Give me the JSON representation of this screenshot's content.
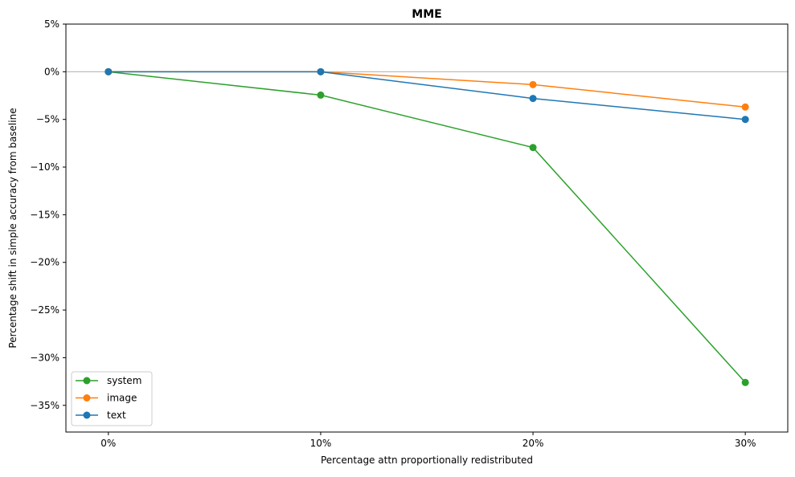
{
  "chart_data": {
    "type": "line",
    "title": "MME",
    "xlabel": "Percentage attn proportionally redistributed",
    "ylabel": "Percentage shift in simple accuracy from baseline",
    "x": [
      0,
      10,
      20,
      30
    ],
    "xtick_labels": [
      "0%",
      "10%",
      "20%",
      "30%"
    ],
    "yticks": [
      5,
      0,
      -5,
      -10,
      -15,
      -20,
      -25,
      -30,
      -35
    ],
    "ytick_labels": [
      "5%",
      "0%",
      "−5%",
      "−10%",
      "−15%",
      "−20%",
      "−25%",
      "−30%",
      "−35%"
    ],
    "xlim": [
      -2,
      32
    ],
    "ylim": [
      -37.8,
      5
    ],
    "reference_line_y": 0,
    "grid": false,
    "legend_position": "lower-left",
    "series": [
      {
        "name": "system",
        "color": "#2ca02c",
        "values": [
          0,
          -2.45,
          -7.95,
          -32.6
        ]
      },
      {
        "name": "image",
        "color": "#ff7f0e",
        "values": [
          0,
          0,
          -1.35,
          -3.7
        ]
      },
      {
        "name": "text",
        "color": "#1f77b4",
        "values": [
          0,
          0,
          -2.8,
          -5.0
        ]
      }
    ]
  }
}
